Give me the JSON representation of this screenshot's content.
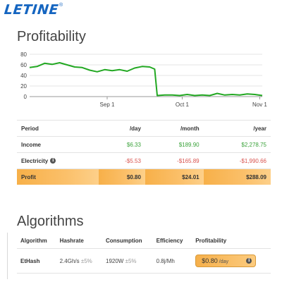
{
  "brand": {
    "logo_text": "LETINE",
    "logo_mark": "®"
  },
  "profitability": {
    "title": "Profitability",
    "chart_data": {
      "type": "line",
      "x_ticks": [
        "Sep 1",
        "Oct 1",
        "Nov 1"
      ],
      "y_ticks": [
        0,
        20,
        40,
        60,
        80
      ],
      "ylim": [
        0,
        80
      ],
      "grid": true,
      "legend": "none",
      "line_color": "#22a822",
      "series": [
        {
          "x": [
            "2017-08-01",
            "2017-08-04",
            "2017-08-07",
            "2017-08-10",
            "2017-08-13",
            "2017-08-16",
            "2017-08-19",
            "2017-08-22",
            "2017-08-25",
            "2017-08-28",
            "2017-08-31",
            "2017-09-03",
            "2017-09-06",
            "2017-09-09",
            "2017-09-12",
            "2017-09-15",
            "2017-09-18",
            "2017-09-20",
            "2017-09-21",
            "2017-09-24",
            "2017-09-27",
            "2017-09-30",
            "2017-10-03",
            "2017-10-06",
            "2017-10-09",
            "2017-10-12",
            "2017-10-15",
            "2017-10-18",
            "2017-10-21",
            "2017-10-24",
            "2017-10-27",
            "2017-10-30",
            "2017-11-02"
          ],
          "values": [
            55,
            57,
            63,
            61,
            64,
            60,
            56,
            55,
            50,
            47,
            51,
            49,
            51,
            48,
            54,
            57,
            56,
            52,
            2,
            3,
            3,
            2,
            4,
            2,
            3,
            2,
            6,
            3,
            4,
            3,
            5,
            4,
            2
          ]
        }
      ]
    },
    "table": {
      "headers": [
        "Period",
        "/day",
        "/month",
        "/year"
      ],
      "rows": [
        {
          "label": "Income",
          "day": "$6.33",
          "month": "$189.90",
          "year": "$2,278.75"
        },
        {
          "label": "Electricity",
          "day": "-$5.53",
          "month": "-$165.89",
          "year": "-$1,990.66"
        },
        {
          "label": "Profit",
          "day": "$0.80",
          "month": "$24.01",
          "year": "$288.09"
        }
      ]
    }
  },
  "algorithms": {
    "title": "Algorithms",
    "headers": [
      "Algorithm",
      "Hashrate",
      "Consumption",
      "Efficiency",
      "Profitability"
    ],
    "rows": [
      {
        "algorithm": "EtHash",
        "hashrate": "2.4Gh/s",
        "hashrate_var": "±5%",
        "consumption": "1920W",
        "consumption_var": "±5%",
        "efficiency": "0.8j/Mh",
        "profit": "$0.80",
        "profit_unit": "/day"
      }
    ]
  },
  "icons": {
    "info": "info-icon"
  }
}
